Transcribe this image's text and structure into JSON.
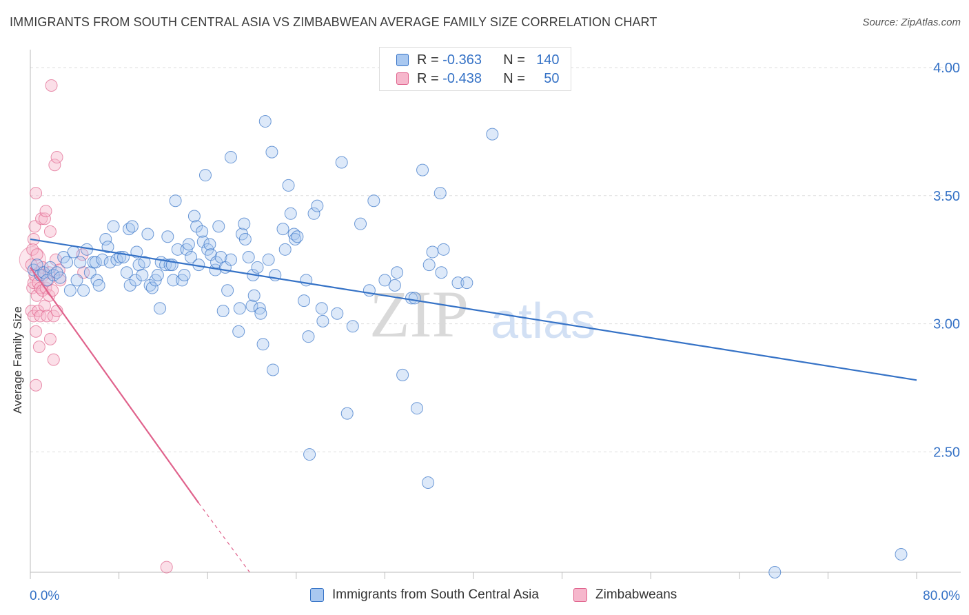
{
  "title": "IMMIGRANTS FROM SOUTH CENTRAL ASIA VS ZIMBABWEAN AVERAGE FAMILY SIZE CORRELATION CHART",
  "source": "Source: ZipAtlas.com",
  "watermark": {
    "zip": "ZIP",
    "atlas": "atlas"
  },
  "colors": {
    "blue": "#3572c6",
    "blue_fill": "#a9c8f0",
    "pink": "#e0628c",
    "pink_fill": "#f6b7cc",
    "grid": "#dddddd",
    "axis_text": "#3572c6"
  },
  "legend_top": {
    "r_label": "R =",
    "n_label": "N =",
    "rows": [
      {
        "r": "-0.363",
        "n": "140"
      },
      {
        "r": "-0.438",
        "n": "50"
      }
    ]
  },
  "legend_bottom": [
    "Immigrants from South Central Asia",
    "Zimbabweans"
  ],
  "chart_data": {
    "type": "scatter",
    "title": "IMMIGRANTS FROM SOUTH CENTRAL ASIA VS ZIMBABWEAN AVERAGE FAMILY SIZE CORRELATION CHART",
    "xlabel": "",
    "ylabel": "Average Family Size",
    "x_tick_labels": [
      "0.0%",
      "80.0%"
    ],
    "y_tick_labels": [
      "2.50",
      "3.00",
      "3.50",
      "4.00"
    ],
    "xlim": [
      0,
      80
    ],
    "ylim": [
      2.03,
      4.07
    ],
    "y_ticks": [
      2.5,
      3.0,
      3.5,
      4.0
    ],
    "grid": true,
    "legend_position": "top-center",
    "series": [
      {
        "name": "Immigrants from South Central Asia",
        "color": "#3572c6",
        "trend": {
          "x": [
            0,
            80
          ],
          "y": [
            3.33,
            2.78
          ]
        },
        "points": [
          [
            0.3,
            3.21
          ],
          [
            0.6,
            3.23
          ],
          [
            0.9,
            3.19
          ],
          [
            1.2,
            3.2
          ],
          [
            1.5,
            3.17
          ],
          [
            1.8,
            3.22
          ],
          [
            2.1,
            3.19
          ],
          [
            2.4,
            3.2
          ],
          [
            2.7,
            3.18
          ],
          [
            3.0,
            3.26
          ],
          [
            3.3,
            3.24
          ],
          [
            3.6,
            3.13
          ],
          [
            3.9,
            3.28
          ],
          [
            4.2,
            3.17
          ],
          [
            4.5,
            3.24
          ],
          [
            4.8,
            3.13
          ],
          [
            5.1,
            3.29
          ],
          [
            5.4,
            3.2
          ],
          [
            5.7,
            3.24
          ],
          [
            5.9,
            3.24
          ],
          [
            6.0,
            3.17
          ],
          [
            6.2,
            3.15
          ],
          [
            6.5,
            3.25
          ],
          [
            6.8,
            3.33
          ],
          [
            7.0,
            3.3
          ],
          [
            7.2,
            3.24
          ],
          [
            7.5,
            3.38
          ],
          [
            7.8,
            3.25
          ],
          [
            8.1,
            3.26
          ],
          [
            8.4,
            3.26
          ],
          [
            8.7,
            3.2
          ],
          [
            8.9,
            3.37
          ],
          [
            9.0,
            3.15
          ],
          [
            9.2,
            3.38
          ],
          [
            9.5,
            3.17
          ],
          [
            9.6,
            3.28
          ],
          [
            9.8,
            3.23
          ],
          [
            10.1,
            3.19
          ],
          [
            10.3,
            3.24
          ],
          [
            10.6,
            3.35
          ],
          [
            10.8,
            3.15
          ],
          [
            11.0,
            3.14
          ],
          [
            11.3,
            3.17
          ],
          [
            11.5,
            3.19
          ],
          [
            11.7,
            3.06
          ],
          [
            11.8,
            3.24
          ],
          [
            12.2,
            3.23
          ],
          [
            12.4,
            3.34
          ],
          [
            12.6,
            3.23
          ],
          [
            12.8,
            3.23
          ],
          [
            12.9,
            3.17
          ],
          [
            13.1,
            3.48
          ],
          [
            13.3,
            3.29
          ],
          [
            13.7,
            3.17
          ],
          [
            13.9,
            3.19
          ],
          [
            14.1,
            3.29
          ],
          [
            14.3,
            3.31
          ],
          [
            14.5,
            3.26
          ],
          [
            14.8,
            3.42
          ],
          [
            15.0,
            3.38
          ],
          [
            15.2,
            3.23
          ],
          [
            15.5,
            3.36
          ],
          [
            15.6,
            3.32
          ],
          [
            15.8,
            3.58
          ],
          [
            16.0,
            3.29
          ],
          [
            16.2,
            3.31
          ],
          [
            16.3,
            3.27
          ],
          [
            16.7,
            3.21
          ],
          [
            16.8,
            3.24
          ],
          [
            17.0,
            3.38
          ],
          [
            17.2,
            3.26
          ],
          [
            17.4,
            3.05
          ],
          [
            17.6,
            3.22
          ],
          [
            17.8,
            3.13
          ],
          [
            18.1,
            3.25
          ],
          [
            18.1,
            3.65
          ],
          [
            18.8,
            2.97
          ],
          [
            18.9,
            3.06
          ],
          [
            19.1,
            3.35
          ],
          [
            19.3,
            3.39
          ],
          [
            19.4,
            3.33
          ],
          [
            19.7,
            3.26
          ],
          [
            20.0,
            3.07
          ],
          [
            20.1,
            3.19
          ],
          [
            20.2,
            3.11
          ],
          [
            20.5,
            3.22
          ],
          [
            20.7,
            3.06
          ],
          [
            20.8,
            3.04
          ],
          [
            21.0,
            2.92
          ],
          [
            21.2,
            3.79
          ],
          [
            21.5,
            3.25
          ],
          [
            21.8,
            3.67
          ],
          [
            21.9,
            2.82
          ],
          [
            22.1,
            3.19
          ],
          [
            22.8,
            3.37
          ],
          [
            23.0,
            3.29
          ],
          [
            23.3,
            3.54
          ],
          [
            23.5,
            3.43
          ],
          [
            23.8,
            3.35
          ],
          [
            23.9,
            3.33
          ],
          [
            24.1,
            3.34
          ],
          [
            24.7,
            3.09
          ],
          [
            24.9,
            3.17
          ],
          [
            25.1,
            2.95
          ],
          [
            25.2,
            2.49
          ],
          [
            25.6,
            3.43
          ],
          [
            25.9,
            3.46
          ],
          [
            26.3,
            3.06
          ],
          [
            26.4,
            3.01
          ],
          [
            27.7,
            3.04
          ],
          [
            28.1,
            3.63
          ],
          [
            28.6,
            2.65
          ],
          [
            29.1,
            2.99
          ],
          [
            29.8,
            3.39
          ],
          [
            30.6,
            3.13
          ],
          [
            31.0,
            3.48
          ],
          [
            32.0,
            3.17
          ],
          [
            32.9,
            3.15
          ],
          [
            33.1,
            3.2
          ],
          [
            33.6,
            2.8
          ],
          [
            34.4,
            3.1
          ],
          [
            34.7,
            3.1
          ],
          [
            34.9,
            2.67
          ],
          [
            35.4,
            3.6
          ],
          [
            35.9,
            2.38
          ],
          [
            36.0,
            3.23
          ],
          [
            36.3,
            3.28
          ],
          [
            37.0,
            3.51
          ],
          [
            37.1,
            3.2
          ],
          [
            37.3,
            3.29
          ],
          [
            38.6,
            3.16
          ],
          [
            39.4,
            3.16
          ],
          [
            41.7,
            3.74
          ],
          [
            67.2,
            2.03
          ],
          [
            78.6,
            2.1
          ]
        ]
      },
      {
        "name": "Zimbabweans",
        "color": "#e0628c",
        "trend": {
          "x": [
            0,
            15.2
          ],
          "y": [
            3.22,
            2.3
          ],
          "dashed_to": {
            "x": 19.8,
            "y": 2.03
          }
        },
        "points": [
          [
            0.1,
            3.23
          ],
          [
            0.1,
            3.05
          ],
          [
            0.2,
            3.14
          ],
          [
            0.2,
            3.29
          ],
          [
            0.3,
            3.33
          ],
          [
            0.3,
            3.16
          ],
          [
            0.3,
            3.03
          ],
          [
            0.4,
            3.38
          ],
          [
            0.4,
            3.19
          ],
          [
            0.5,
            2.76
          ],
          [
            0.5,
            3.51
          ],
          [
            0.5,
            2.97
          ],
          [
            0.6,
            3.27
          ],
          [
            0.6,
            3.11
          ],
          [
            0.7,
            3.05
          ],
          [
            0.7,
            3.16
          ],
          [
            0.8,
            2.91
          ],
          [
            0.8,
            3.2
          ],
          [
            0.9,
            3.14
          ],
          [
            0.9,
            3.03
          ],
          [
            1.0,
            3.41
          ],
          [
            1.1,
            3.13
          ],
          [
            1.1,
            3.22
          ],
          [
            1.2,
            3.19
          ],
          [
            1.3,
            3.41
          ],
          [
            1.3,
            3.07
          ],
          [
            1.4,
            3.14
          ],
          [
            1.4,
            3.44
          ],
          [
            1.5,
            3.03
          ],
          [
            1.6,
            3.17
          ],
          [
            1.7,
            3.2
          ],
          [
            1.7,
            3.11
          ],
          [
            1.8,
            3.36
          ],
          [
            1.8,
            2.94
          ],
          [
            1.9,
            3.93
          ],
          [
            2.0,
            3.13
          ],
          [
            2.1,
            3.03
          ],
          [
            2.1,
            2.86
          ],
          [
            2.2,
            3.62
          ],
          [
            2.3,
            3.25
          ],
          [
            2.4,
            3.65
          ],
          [
            2.4,
            3.05
          ],
          [
            2.6,
            3.21
          ],
          [
            2.7,
            3.17
          ],
          [
            4.7,
            3.27
          ],
          [
            4.8,
            3.2
          ],
          [
            12.3,
            2.05
          ]
        ]
      }
    ]
  }
}
